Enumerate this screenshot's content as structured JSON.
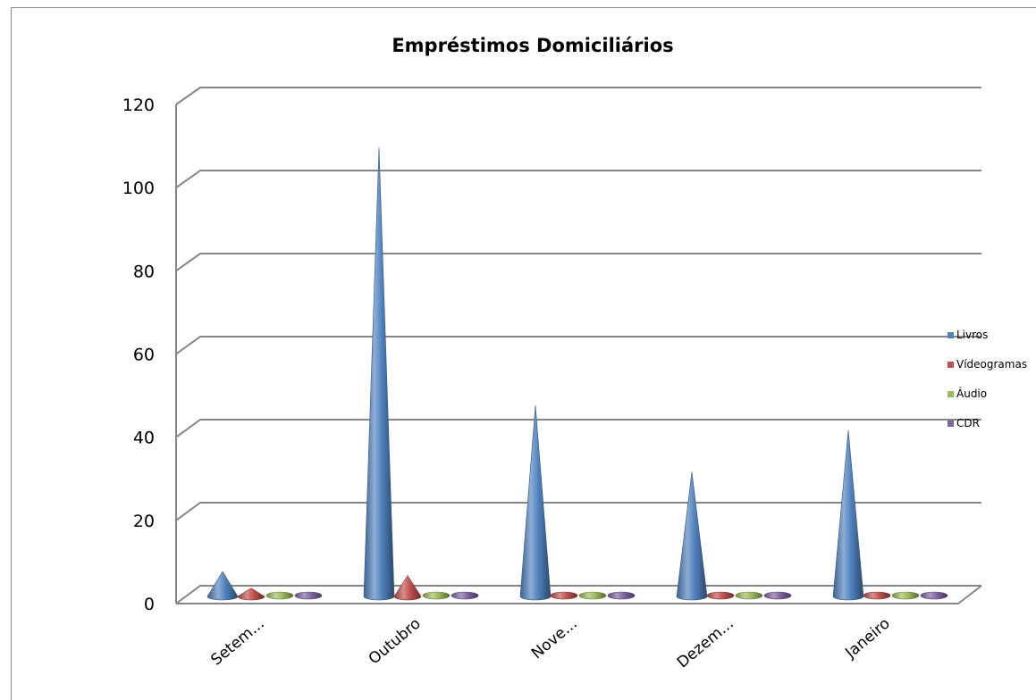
{
  "chart_data": {
    "type": "bar",
    "style": "3d-cone",
    "title": "Empréstimos Domiciliários",
    "xlabel": "",
    "ylabel": "",
    "categories": [
      "Setem...",
      "Outubro",
      "Nove...",
      "Dezem...",
      "Janeiro"
    ],
    "ylim": [
      0,
      120
    ],
    "yticks": [
      "0",
      "20",
      "40",
      "60",
      "80",
      "100",
      "120"
    ],
    "grid": true,
    "legend_position": "right",
    "series": [
      {
        "name": "Livros",
        "color": "#4f81bd",
        "values": [
          6,
          108,
          46,
          30,
          40
        ]
      },
      {
        "name": "Vídeogramas",
        "color": "#c0504d",
        "values": [
          2,
          5,
          0,
          0,
          0
        ]
      },
      {
        "name": "Áudio",
        "color": "#9bbb59",
        "values": [
          0,
          0,
          0,
          0,
          0
        ]
      },
      {
        "name": "CDR",
        "color": "#8064a2",
        "values": [
          0,
          0,
          0,
          0,
          0
        ]
      }
    ]
  }
}
